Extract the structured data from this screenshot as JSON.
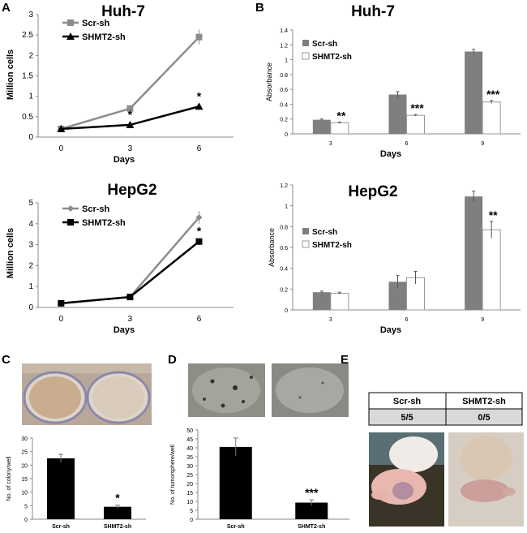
{
  "colors": {
    "scr": "#8c8c8c",
    "shmt2": "#000000",
    "bar_scr": "#7f7f7f",
    "bar_shmt2": "#ffffff",
    "photo_plate": "#d8c4ae",
    "photo_sphere": "#9a9a92"
  },
  "panels": {
    "A": "A",
    "B": "B",
    "C": "C",
    "D": "D",
    "E": "E"
  },
  "chart_data": [
    {
      "id": "A1",
      "type": "line",
      "title": "Huh-7",
      "xlabel": "Days",
      "ylabel": "Million cells",
      "x": [
        0,
        3,
        6
      ],
      "xlim": [
        -1,
        7.5
      ],
      "ylim": [
        0,
        3
      ],
      "yticks": [
        "0",
        "0.5",
        "1",
        "1.5",
        "2",
        "2.5",
        "3"
      ],
      "xticks": [
        "0",
        "3",
        "6"
      ],
      "series": [
        {
          "name": "Scr-sh",
          "key": "scr",
          "marker": "square",
          "values": [
            0.2,
            0.7,
            2.45
          ],
          "err": [
            0.02,
            0.05,
            0.18
          ]
        },
        {
          "name": "SHMT2-sh",
          "key": "shmt2",
          "marker": "triangle",
          "values": [
            0.2,
            0.3,
            0.75
          ],
          "err": [
            0.02,
            0.03,
            0.05
          ]
        }
      ],
      "annotations": [
        {
          "x": 3,
          "y": 0.3,
          "text": "*"
        },
        {
          "x": 6,
          "y": 0.75,
          "text": "*"
        }
      ]
    },
    {
      "id": "A2",
      "type": "line",
      "title": "HepG2",
      "xlabel": "Days",
      "ylabel": "Million cells",
      "x": [
        0,
        3,
        6
      ],
      "xlim": [
        -1,
        7.5
      ],
      "ylim": [
        0,
        5
      ],
      "yticks": [
        "0",
        "1",
        "2",
        "3",
        "4",
        "5"
      ],
      "xticks": [
        "0",
        "3",
        "6"
      ],
      "series": [
        {
          "name": "Scr-sh",
          "key": "scr",
          "marker": "diamond",
          "values": [
            0.2,
            0.5,
            4.3
          ],
          "err": [
            0.02,
            0.04,
            0.3
          ]
        },
        {
          "name": "SHMT2-sh",
          "key": "shmt2",
          "marker": "square",
          "values": [
            0.2,
            0.5,
            3.15
          ],
          "err": [
            0.02,
            0.04,
            0.1
          ]
        }
      ],
      "annotations": [
        {
          "x": 6,
          "y": 3.15,
          "text": "*"
        }
      ]
    },
    {
      "id": "B1",
      "type": "bar",
      "title": "Huh-7",
      "xlabel": "Days",
      "ylabel": "Absorbance",
      "categories": [
        "3",
        "6",
        "9"
      ],
      "ylim": [
        0,
        1.4
      ],
      "yticks": [
        "0",
        "0.2",
        "0.4",
        "0.6",
        "0.8",
        "1",
        "1.2",
        "1.4"
      ],
      "series": [
        {
          "name": "Scr-sh",
          "key": "bar_scr",
          "values": [
            0.19,
            0.53,
            1.11
          ],
          "err": [
            0.01,
            0.04,
            0.03
          ]
        },
        {
          "name": "SHMT2-sh",
          "key": "bar_shmt2",
          "values": [
            0.15,
            0.25,
            0.43
          ],
          "err": [
            0.01,
            0.01,
            0.02
          ]
        }
      ],
      "annotations": [
        "**",
        "***",
        "***"
      ]
    },
    {
      "id": "B2",
      "type": "bar",
      "title": "HepG2",
      "xlabel": "Days",
      "ylabel": "Absorbance",
      "categories": [
        "3",
        "6",
        "9"
      ],
      "ylim": [
        0,
        1.2
      ],
      "yticks": [
        "0",
        "0.2",
        "0.4",
        "0.6",
        "0.8",
        "1",
        "1.2"
      ],
      "series": [
        {
          "name": "Scr-sh",
          "key": "bar_scr",
          "values": [
            0.17,
            0.27,
            1.09
          ],
          "err": [
            0.01,
            0.06,
            0.05
          ]
        },
        {
          "name": "SHMT2-sh",
          "key": "bar_shmt2",
          "values": [
            0.16,
            0.31,
            0.77
          ],
          "err": [
            0.01,
            0.06,
            0.08
          ]
        }
      ],
      "annotations": [
        "",
        "",
        "**"
      ]
    },
    {
      "id": "C",
      "type": "bar",
      "ylabel": "No. of colony/well",
      "categories": [
        "Scr-sh",
        "SHMT2-sh"
      ],
      "values": [
        22.5,
        4.6
      ],
      "err": [
        1.5,
        0.6
      ],
      "ylim": [
        0,
        30
      ],
      "yticks": [
        "0",
        "5",
        "10",
        "15",
        "20",
        "25",
        "30"
      ],
      "annotations": [
        "",
        "*"
      ]
    },
    {
      "id": "D",
      "type": "bar",
      "ylabel": "No. of tumorsphere/well",
      "categories": [
        "Scr-sh",
        "SHMT2-sh"
      ],
      "values": [
        40.5,
        9.3
      ],
      "err": [
        5.0,
        1.5
      ],
      "ylim": [
        0,
        50
      ],
      "yticks": [
        "0",
        "5",
        "10",
        "15",
        "20",
        "25",
        "30",
        "35",
        "40",
        "45",
        "50"
      ],
      "annotations": [
        "",
        "***"
      ]
    }
  ],
  "table_E": {
    "headers": [
      "Scr-sh",
      "SHMT2-sh"
    ],
    "values": [
      "5/5",
      "0/5"
    ]
  }
}
